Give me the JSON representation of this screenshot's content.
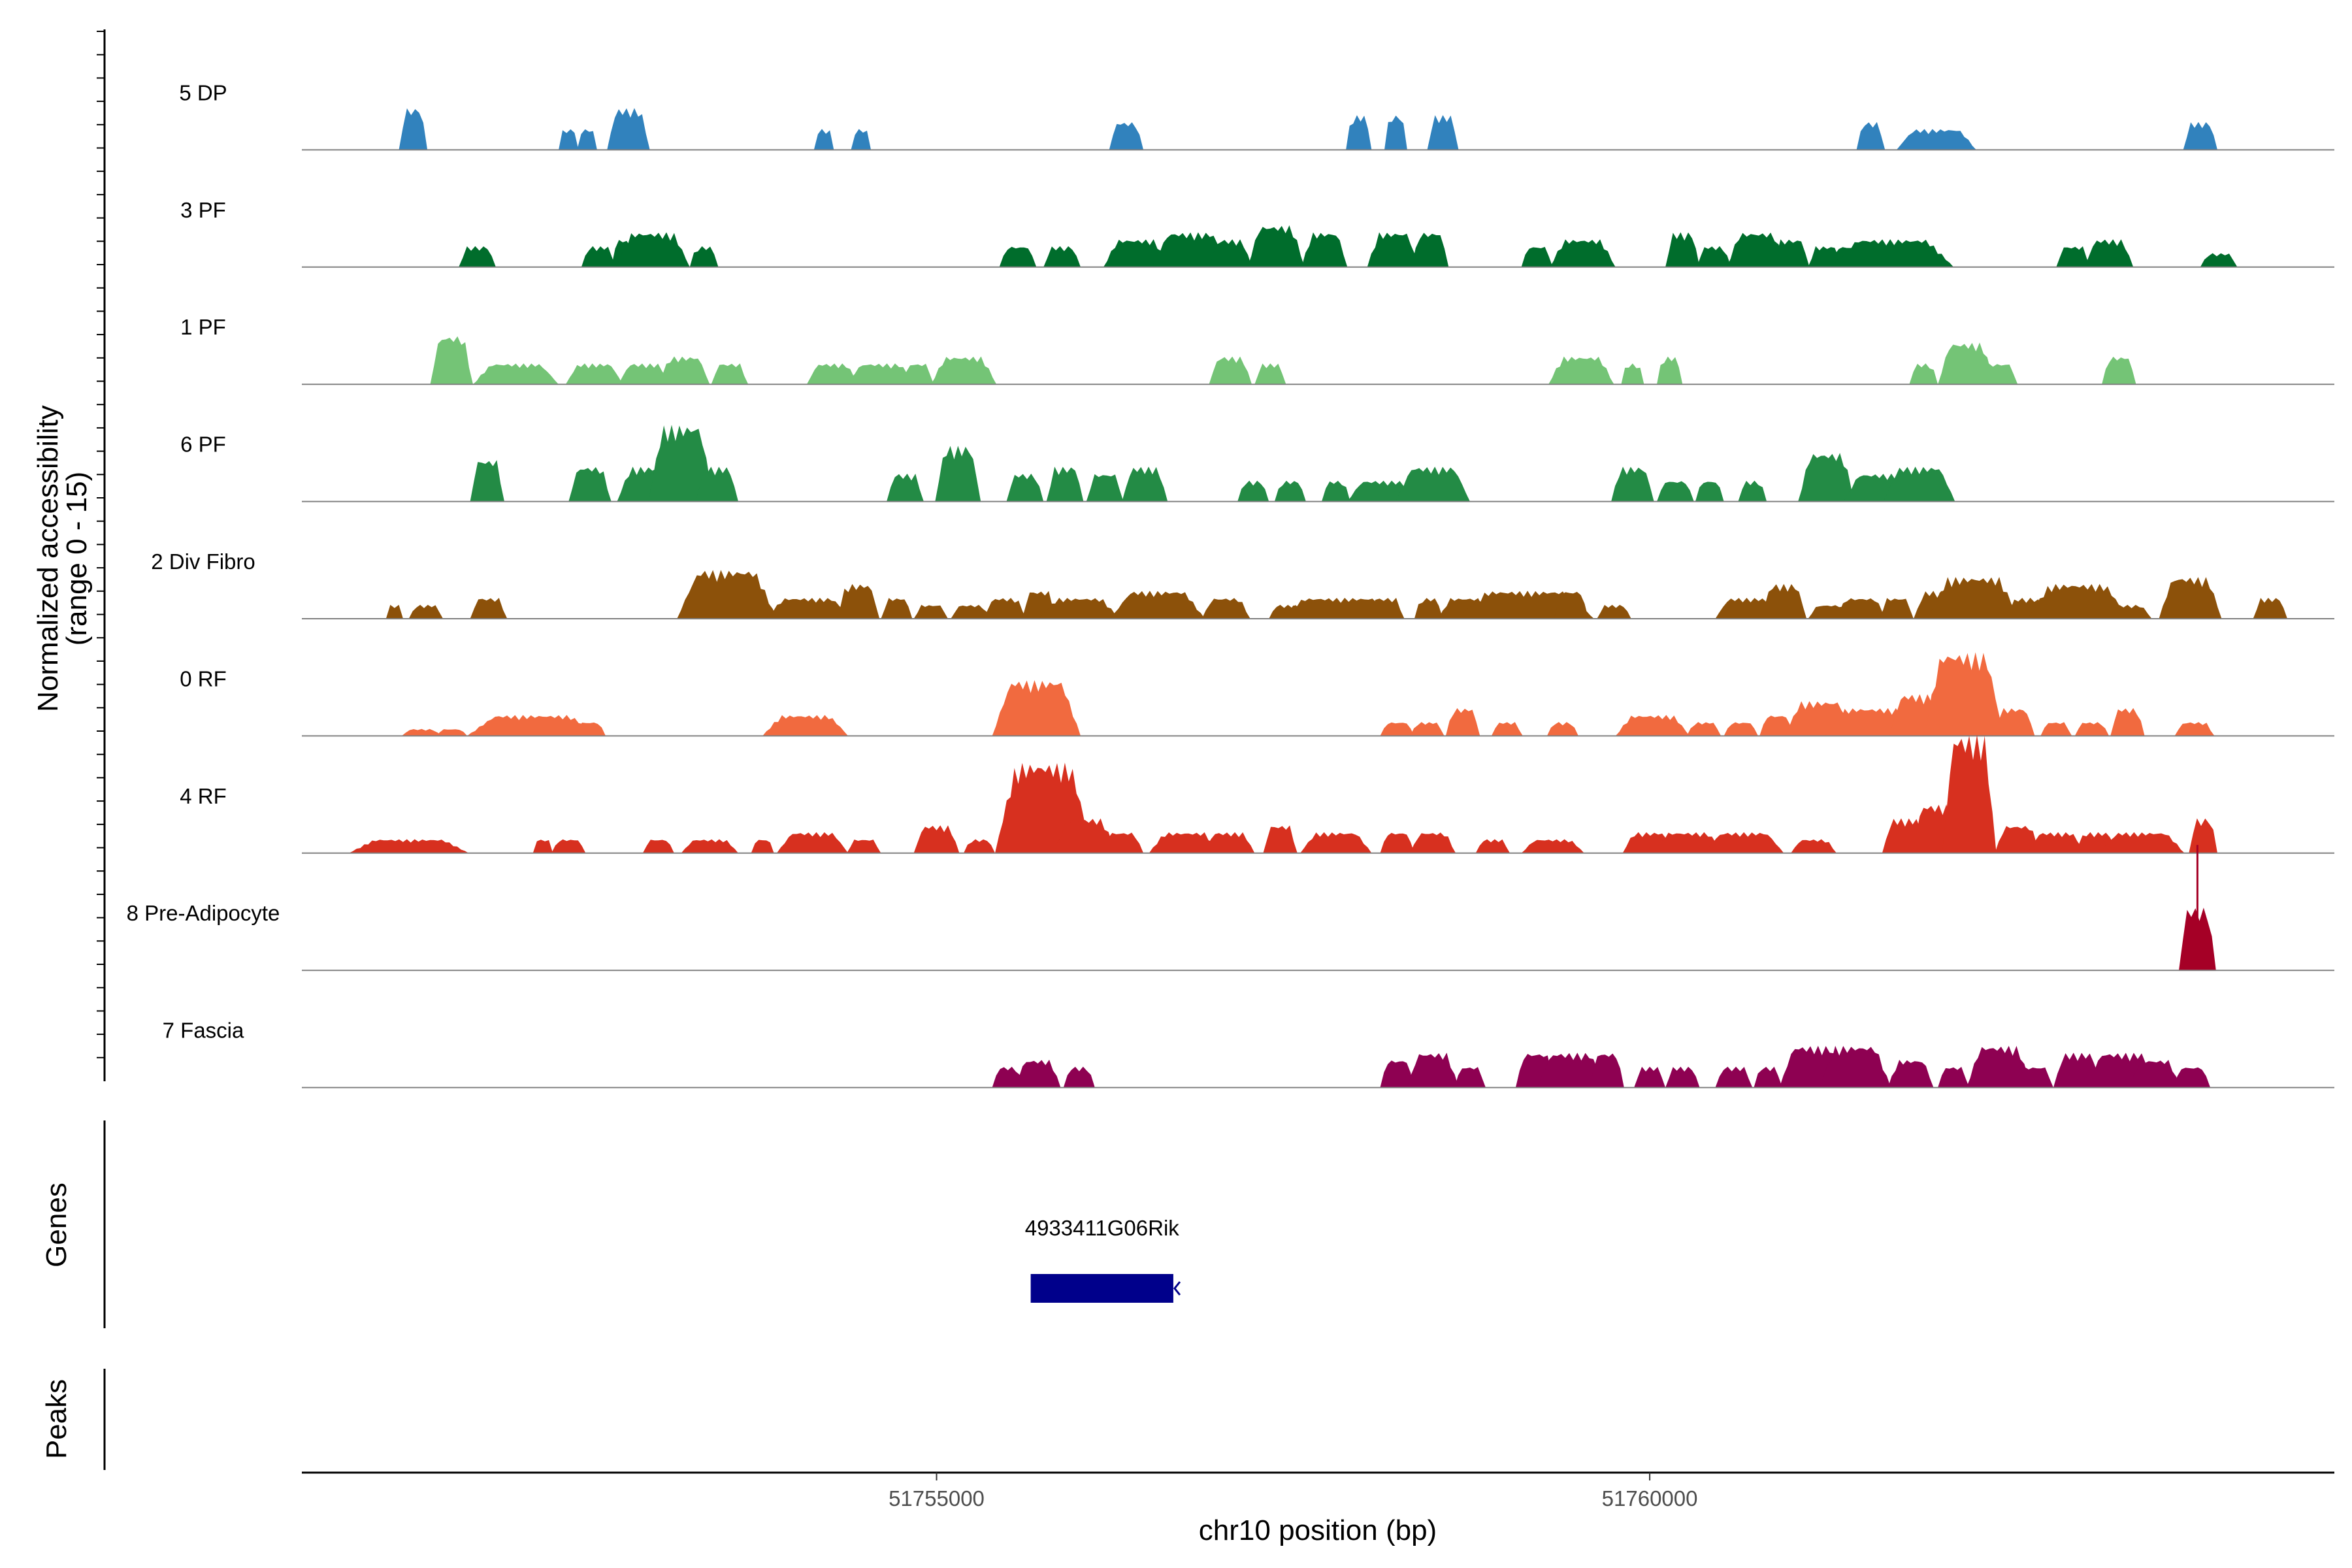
{
  "chart_data": {
    "type": "area",
    "title": "",
    "region": {
      "chrom": "chr10",
      "start": 51750550,
      "end": 51764800
    },
    "xlabel": "chr10 position (bp)",
    "ylabel": "Normalized accessibility",
    "ylabel_sub": "(range 0 - 15)",
    "ylim": [
      0,
      15
    ],
    "xticks": [
      51755000,
      51760000
    ],
    "xtick_labels": [
      "51755000",
      "51760000"
    ],
    "tracks": [
      {
        "name": "5 DP",
        "color": "#3182BD",
        "peaks": [
          [
            51751330,
            6,
            100
          ],
          [
            51752420,
            3,
            70
          ],
          [
            51752550,
            3,
            70
          ],
          [
            51752840,
            6,
            150
          ],
          [
            51754210,
            3,
            70
          ],
          [
            51754470,
            3,
            70
          ],
          [
            51756330,
            4,
            120
          ],
          [
            51757960,
            5,
            90
          ],
          [
            51758220,
            5,
            80
          ],
          [
            51758550,
            5,
            110
          ],
          [
            51761550,
            4,
            100
          ],
          [
            51762010,
            3,
            280
          ],
          [
            51763860,
            4,
            120
          ]
        ]
      },
      {
        "name": "3 PF",
        "color": "#006D2C",
        "peaks": [
          [
            51751780,
            3,
            130
          ],
          [
            51752630,
            3,
            120
          ],
          [
            51752800,
            4,
            80
          ],
          [
            51753010,
            5,
            260
          ],
          [
            51753370,
            3,
            100
          ],
          [
            51755570,
            3,
            130
          ],
          [
            51755880,
            3,
            130
          ],
          [
            51756400,
            4,
            230
          ],
          [
            51756780,
            5,
            270
          ],
          [
            51757060,
            4,
            150
          ],
          [
            51757380,
            6,
            200
          ],
          [
            51757720,
            5,
            160
          ],
          [
            51758200,
            5,
            180
          ],
          [
            51758460,
            5,
            130
          ],
          [
            51759210,
            3,
            110
          ],
          [
            51759530,
            4,
            230
          ],
          [
            51760230,
            5,
            120
          ],
          [
            51760450,
            3,
            120
          ],
          [
            51760750,
            5,
            210
          ],
          [
            51760990,
            4,
            130
          ],
          [
            51761230,
            3,
            120
          ],
          [
            51761380,
            3,
            110
          ],
          [
            51761700,
            4,
            430
          ],
          [
            51762970,
            3,
            120
          ],
          [
            51763220,
            4,
            170
          ],
          [
            51763990,
            2,
            130
          ]
        ]
      },
      {
        "name": "1 PF",
        "color": "#74C476",
        "peaks": [
          [
            51751600,
            7,
            150
          ],
          [
            51752050,
            3,
            300
          ],
          [
            51752600,
            3,
            200
          ],
          [
            51752950,
            3,
            180
          ],
          [
            51753230,
            4,
            180
          ],
          [
            51753550,
            3,
            130
          ],
          [
            51754270,
            3,
            180
          ],
          [
            51754610,
            3,
            240
          ],
          [
            51754870,
            3,
            110
          ],
          [
            51755190,
            4,
            230
          ],
          [
            51757060,
            4,
            150
          ],
          [
            51757340,
            3,
            110
          ],
          [
            51759520,
            4,
            230
          ],
          [
            51759880,
            3,
            80
          ],
          [
            51760140,
            4,
            90
          ],
          [
            51761920,
            3,
            100
          ],
          [
            51762220,
            6,
            200
          ],
          [
            51762450,
            3,
            130
          ],
          [
            51763290,
            4,
            120
          ]
        ]
      },
      {
        "name": "6 PF",
        "color": "#238B45",
        "peaks": [
          [
            51751850,
            6,
            120
          ],
          [
            51752570,
            5,
            150
          ],
          [
            51752980,
            5,
            220
          ],
          [
            51753210,
            11,
            230
          ],
          [
            51753460,
            5,
            150
          ],
          [
            51754780,
            4,
            130
          ],
          [
            51755150,
            8,
            160
          ],
          [
            51755620,
            4,
            130
          ],
          [
            51755900,
            5,
            130
          ],
          [
            51756180,
            4,
            130
          ],
          [
            51756460,
            5,
            160
          ],
          [
            51757220,
            3,
            110
          ],
          [
            51757480,
            3,
            110
          ],
          [
            51757800,
            3,
            100
          ],
          [
            51758120,
            3,
            240
          ],
          [
            51758480,
            5,
            260
          ],
          [
            51759880,
            5,
            150
          ],
          [
            51760180,
            3,
            130
          ],
          [
            51760420,
            3,
            100
          ],
          [
            51760720,
            3,
            100
          ],
          [
            51761240,
            7,
            200
          ],
          [
            51761610,
            4,
            250
          ],
          [
            51761890,
            5,
            250
          ]
        ]
      },
      {
        "name": "2 Div Fibro",
        "color": "#8C510A",
        "peaks": [
          [
            51751200,
            2,
            60
          ],
          [
            51751420,
            2,
            120
          ],
          [
            51751860,
            3,
            130
          ],
          [
            51753530,
            7,
            350
          ],
          [
            51754100,
            3,
            300
          ],
          [
            51754450,
            5,
            150
          ],
          [
            51754720,
            3,
            110
          ],
          [
            51754960,
            2,
            120
          ],
          [
            51755240,
            2,
            140
          ],
          [
            51755480,
            3,
            150
          ],
          [
            51755720,
            4,
            120
          ],
          [
            51756000,
            3,
            280
          ],
          [
            51756550,
            4,
            330
          ],
          [
            51757030,
            3,
            170
          ],
          [
            51757450,
            2,
            120
          ],
          [
            51757820,
            3,
            430
          ],
          [
            51758150,
            3,
            130
          ],
          [
            51758450,
            3,
            100
          ],
          [
            51758700,
            3,
            180
          ],
          [
            51759130,
            4,
            480
          ],
          [
            51759450,
            4,
            120
          ],
          [
            51759750,
            2,
            120
          ],
          [
            51760680,
            3,
            220
          ],
          [
            51760940,
            5,
            160
          ],
          [
            51761260,
            2,
            150
          ],
          [
            51761480,
            3,
            180
          ],
          [
            51761730,
            3,
            120
          ],
          [
            51762030,
            4,
            180
          ],
          [
            51762270,
            6,
            320
          ],
          [
            51762640,
            3,
            140
          ],
          [
            51763000,
            5,
            350
          ],
          [
            51763350,
            2,
            170
          ],
          [
            51763790,
            6,
            220
          ],
          [
            51764350,
            3,
            120
          ]
        ]
      },
      {
        "name": "0 RF",
        "color": "#F16A3F",
        "peaks": [
          [
            51751390,
            1,
            140
          ],
          [
            51751600,
            1,
            110
          ],
          [
            51752000,
            2,
            120
          ],
          [
            51752170,
            3,
            460
          ],
          [
            51752570,
            2,
            110
          ],
          [
            51754080,
            3,
            300
          ],
          [
            51755700,
            8,
            310
          ],
          [
            51758230,
            2,
            120
          ],
          [
            51758440,
            2,
            120
          ],
          [
            51758690,
            4,
            120
          ],
          [
            51759000,
            2,
            110
          ],
          [
            51759390,
            2,
            110
          ],
          [
            51760020,
            3,
            260
          ],
          [
            51760380,
            2,
            120
          ],
          [
            51760640,
            2,
            120
          ],
          [
            51760890,
            3,
            120
          ],
          [
            51761190,
            5,
            240
          ],
          [
            51761560,
            4,
            330
          ],
          [
            51761880,
            6,
            200
          ],
          [
            51762200,
            12,
            280
          ],
          [
            51762550,
            4,
            150
          ],
          [
            51762850,
            2,
            110
          ],
          [
            51763100,
            2,
            120
          ],
          [
            51763350,
            4,
            120
          ],
          [
            51763820,
            2,
            140
          ]
        ]
      },
      {
        "name": "4 RF",
        "color": "#D7301F",
        "peaks": [
          [
            51751300,
            2,
            420
          ],
          [
            51752240,
            2,
            70
          ],
          [
            51752420,
            2,
            120
          ],
          [
            51753050,
            2,
            110
          ],
          [
            51753410,
            2,
            200
          ],
          [
            51753780,
            2,
            80
          ],
          [
            51754130,
            3,
            250
          ],
          [
            51754490,
            2,
            120
          ],
          [
            51755000,
            4,
            160
          ],
          [
            51755300,
            2,
            110
          ],
          [
            51755750,
            13,
            340
          ],
          [
            51756040,
            5,
            220
          ],
          [
            51756300,
            3,
            150
          ],
          [
            51756740,
            3,
            250
          ],
          [
            51757050,
            3,
            180
          ],
          [
            51757410,
            4,
            120
          ],
          [
            51757800,
            3,
            250
          ],
          [
            51758230,
            3,
            120
          ],
          [
            51758480,
            3,
            160
          ],
          [
            51758900,
            2,
            120
          ],
          [
            51759320,
            2,
            220
          ],
          [
            51759990,
            3,
            180
          ],
          [
            51760270,
            3,
            250
          ],
          [
            51760660,
            3,
            280
          ],
          [
            51761150,
            2,
            160
          ],
          [
            51761790,
            5,
            160
          ],
          [
            51762000,
            7,
            160
          ],
          [
            51762240,
            17,
            190
          ],
          [
            51762580,
            4,
            160
          ],
          [
            51762850,
            3,
            200
          ],
          [
            51763130,
            3,
            150
          ],
          [
            51763450,
            3,
            300
          ],
          [
            51763880,
            5,
            100
          ]
        ]
      },
      {
        "name": "8 Pre-Adipocyte",
        "color": "#A50026",
        "peaks": [
          [
            51763840,
            9,
            130
          ],
          [
            51763840,
            18,
            20
          ]
        ]
      },
      {
        "name": "7 Fascia",
        "color": "#8E0152",
        "peaks": [
          [
            51755500,
            3,
            110
          ],
          [
            51755710,
            4,
            160
          ],
          [
            51756000,
            3,
            110
          ],
          [
            51758230,
            4,
            120
          ],
          [
            51758480,
            5,
            180
          ],
          [
            51758740,
            3,
            110
          ],
          [
            51759200,
            5,
            140
          ],
          [
            51759450,
            5,
            240
          ],
          [
            51759700,
            5,
            120
          ],
          [
            51760000,
            3,
            110
          ],
          [
            51760230,
            3,
            120
          ],
          [
            51760590,
            3,
            130
          ],
          [
            51760830,
            3,
            100
          ],
          [
            51761140,
            6,
            230
          ],
          [
            51761440,
            6,
            250
          ],
          [
            51761830,
            4,
            160
          ],
          [
            51762130,
            3,
            110
          ],
          [
            51762450,
            6,
            230
          ],
          [
            51762700,
            3,
            130
          ],
          [
            51763000,
            5,
            170
          ],
          [
            51763310,
            5,
            250
          ],
          [
            51763540,
            4,
            180
          ],
          [
            51763800,
            3,
            130
          ]
        ]
      }
    ],
    "genes_panel_label": "Genes",
    "peaks_panel_label": "Peaks",
    "genes": [
      {
        "name": "4933411G06Rik",
        "start": 51755660,
        "end": 51756660,
        "strand": "-",
        "color": "#00008B"
      }
    ]
  }
}
